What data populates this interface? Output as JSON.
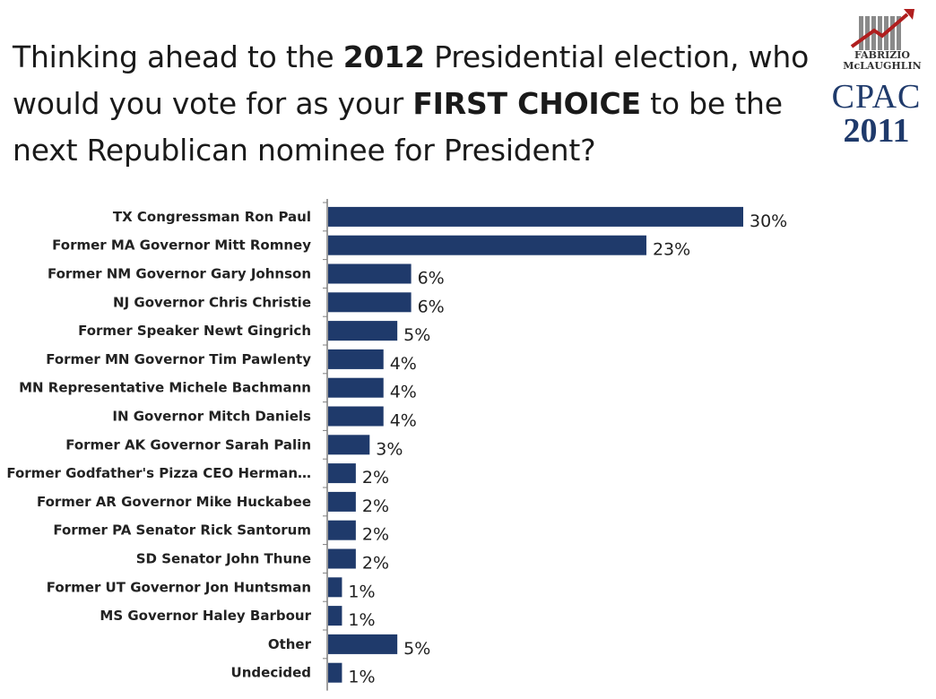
{
  "title": {
    "p1": "Thinking ahead to the ",
    "b1": "2012",
    "p2": " Presidential election, who would you vote for as your ",
    "b2": "FIRST CHOICE",
    "p3": " to be the next Republican nominee for President?"
  },
  "logo": {
    "firm_line1": "FABRIZIO",
    "firm_line2": "McLAUGHLIN",
    "event": "CPAC",
    "year": "2011"
  },
  "colors": {
    "bar": "#1f3a6b",
    "axis": "#7f7f7f"
  },
  "chart_data": {
    "type": "bar",
    "orientation": "horizontal",
    "title": "",
    "xlabel": "",
    "ylabel": "",
    "xlim": [
      0,
      30
    ],
    "categories": [
      "TX Congressman Ron Paul",
      "Former MA Governor Mitt Romney",
      "Former NM Governor Gary Johnson",
      "NJ Governor Chris Christie",
      "Former Speaker Newt Gingrich",
      "Former MN Governor Tim Pawlenty",
      "MN Representative Michele Bachmann",
      "IN Governor Mitch Daniels",
      "Former AK Governor Sarah Palin",
      "Former Godfather's Pizza CEO Herman…",
      "Former AR Governor Mike Huckabee",
      "Former PA Senator Rick Santorum",
      "SD Senator John Thune",
      "Former UT Governor Jon Huntsman",
      "MS Governor Haley Barbour",
      "Other",
      "Undecided"
    ],
    "values": [
      30,
      23,
      6,
      6,
      5,
      4,
      4,
      4,
      3,
      2,
      2,
      2,
      2,
      1,
      1,
      5,
      1
    ],
    "value_labels": [
      "30%",
      "23%",
      "6%",
      "6%",
      "5%",
      "4%",
      "4%",
      "4%",
      "3%",
      "2%",
      "2%",
      "2%",
      "2%",
      "1%",
      "1%",
      "5%",
      "1%"
    ],
    "grid": false,
    "legend": "none"
  }
}
